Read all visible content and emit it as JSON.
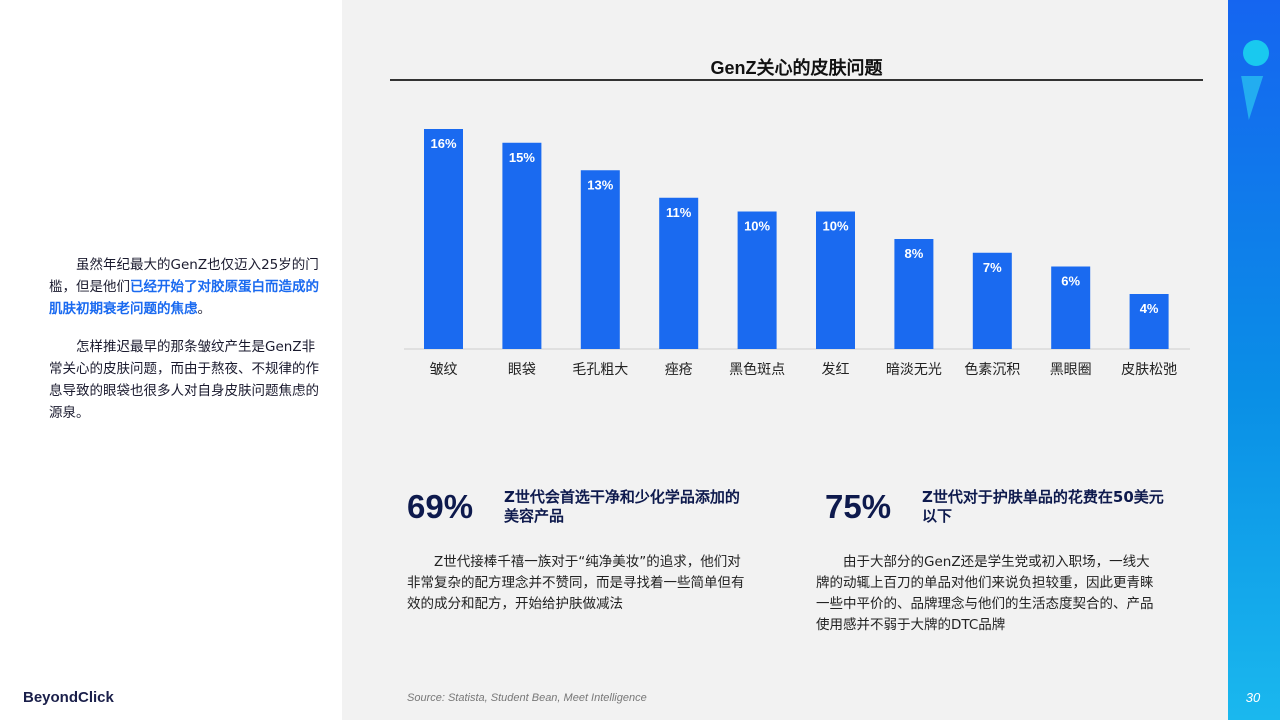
{
  "intro": {
    "para1_pre": "虽然年纪最大的GenZ也仅迈入25岁的门槛，但是他们",
    "para1_highlight": "已经开始了对胶原蛋白而造成的肌肤初期衰老问题的焦虑",
    "para1_post": "。",
    "para2": "怎样推迟最早的那条皱纹产生是GenZ非常关心的皮肤问题，而由于熬夜、不规律的作息导致的眼袋也很多人对自身皮肤问题焦虑的源泉。"
  },
  "logo": "BeyondClick",
  "page_number": "30",
  "source": "Source: Statista, Student Bean, Meet Intelligence",
  "colors": {
    "bar": "#1a6af0",
    "accent": "#1a6af0",
    "stat": "#0e1a4d"
  },
  "chart_data": {
    "type": "bar",
    "title": "GenZ关心的皮肤问题",
    "categories": [
      "皱纹",
      "眼袋",
      "毛孔粗大",
      "痤疮",
      "黑色斑点",
      "发红",
      "暗淡无光",
      "色素沉积",
      "黑眼圈",
      "皮肤松弛"
    ],
    "values": [
      16,
      15,
      13,
      11,
      10,
      10,
      8,
      7,
      6,
      4
    ],
    "data_labels": [
      "16%",
      "15%",
      "13%",
      "11%",
      "10%",
      "10%",
      "8%",
      "7%",
      "6%",
      "4%"
    ],
    "unit": "%",
    "xlabel": "",
    "ylabel": "",
    "grid": false
  },
  "stats": [
    {
      "number": "69%",
      "headline": "Z世代会首选干净和少化学品添加的美容产品",
      "body": "Z世代接棒千禧一族对于“纯净美妆”的追求，他们对非常复杂的配方理念并不赞同，而是寻找着一些简单但有效的成分和配方，开始给护肤做减法"
    },
    {
      "number": "75%",
      "headline": "Z世代对于护肤单品的花费在50美元以下",
      "body": "由于大部分的GenZ还是学生党或初入职场，一线大牌的动辄上百刀的单品对他们来说负担较重，因此更青睐一些中平价的、品牌理念与他们的生活态度契合的、产品使用感并不弱于大牌的DTC品牌"
    }
  ]
}
